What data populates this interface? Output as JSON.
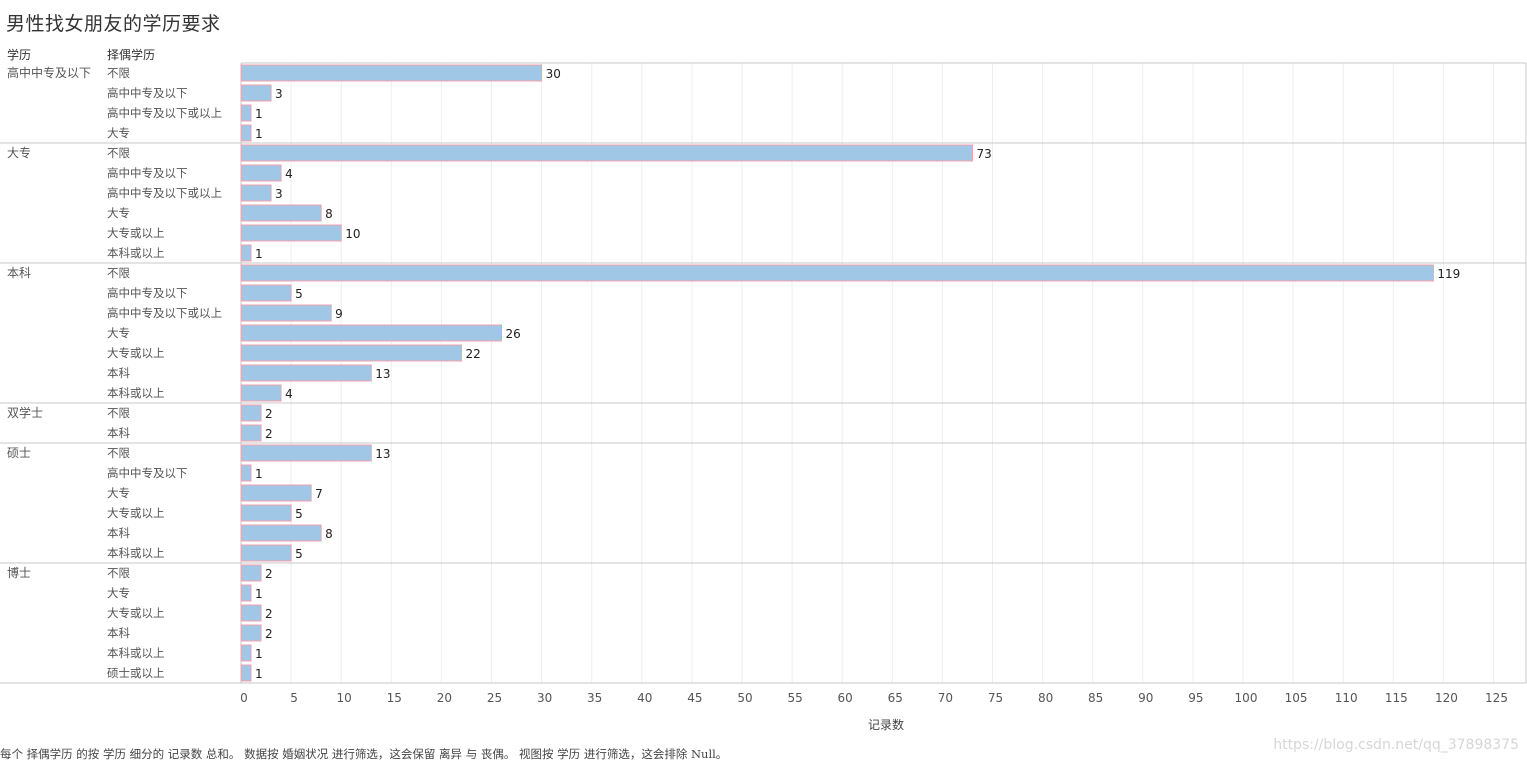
{
  "chart_data": {
    "type": "bar",
    "orientation": "horizontal",
    "title": "男性找女朋友的学历要求",
    "row_header_1": "学历",
    "row_header_2": "择偶学历",
    "xlabel": "记录数",
    "xlim": [
      0,
      125
    ],
    "x_ticks": [
      0,
      5,
      10,
      15,
      20,
      25,
      30,
      35,
      40,
      45,
      50,
      55,
      60,
      65,
      70,
      75,
      80,
      85,
      90,
      95,
      100,
      105,
      110,
      115,
      120,
      125
    ],
    "groups": [
      {
        "name": "高中中专及以下",
        "rows": [
          {
            "label": "不限",
            "value": 30
          },
          {
            "label": "高中中专及以下",
            "value": 3
          },
          {
            "label": "高中中专及以下或以上",
            "value": 1
          },
          {
            "label": "大专",
            "value": 1
          }
        ]
      },
      {
        "name": "大专",
        "rows": [
          {
            "label": "不限",
            "value": 73
          },
          {
            "label": "高中中专及以下",
            "value": 4
          },
          {
            "label": "高中中专及以下或以上",
            "value": 3
          },
          {
            "label": "大专",
            "value": 8
          },
          {
            "label": "大专或以上",
            "value": 10
          },
          {
            "label": "本科或以上",
            "value": 1
          }
        ]
      },
      {
        "name": "本科",
        "rows": [
          {
            "label": "不限",
            "value": 119
          },
          {
            "label": "高中中专及以下",
            "value": 5
          },
          {
            "label": "高中中专及以下或以上",
            "value": 9
          },
          {
            "label": "大专",
            "value": 26
          },
          {
            "label": "大专或以上",
            "value": 22
          },
          {
            "label": "本科",
            "value": 13
          },
          {
            "label": "本科或以上",
            "value": 4
          }
        ]
      },
      {
        "name": "双学士",
        "rows": [
          {
            "label": "不限",
            "value": 2
          },
          {
            "label": "本科",
            "value": 2
          }
        ]
      },
      {
        "name": "硕士",
        "rows": [
          {
            "label": "不限",
            "value": 13
          },
          {
            "label": "高中中专及以下",
            "value": 1
          },
          {
            "label": "大专",
            "value": 7
          },
          {
            "label": "大专或以上",
            "value": 5
          },
          {
            "label": "本科",
            "value": 8
          },
          {
            "label": "本科或以上",
            "value": 5
          }
        ]
      },
      {
        "name": "博士",
        "rows": [
          {
            "label": "不限",
            "value": 2
          },
          {
            "label": "大专",
            "value": 1
          },
          {
            "label": "大专或以上",
            "value": 2
          },
          {
            "label": "本科",
            "value": 2
          },
          {
            "label": "本科或以上",
            "value": 1
          },
          {
            "label": "硕士或以上",
            "value": 1
          }
        ]
      }
    ],
    "bar_fill": "#a0c8e6",
    "bar_stroke": "#f2a0ae",
    "grid": true
  },
  "footnote": "每个 择偶学历 的按 学历 细分的 记录数 总和。 数据按 婚姻状况 进行筛选，这会保留 离异 与 丧偶。 视图按 学历 进行筛选，这会排除 Null。",
  "watermark": "https://blog.csdn.net/qq_37898375"
}
